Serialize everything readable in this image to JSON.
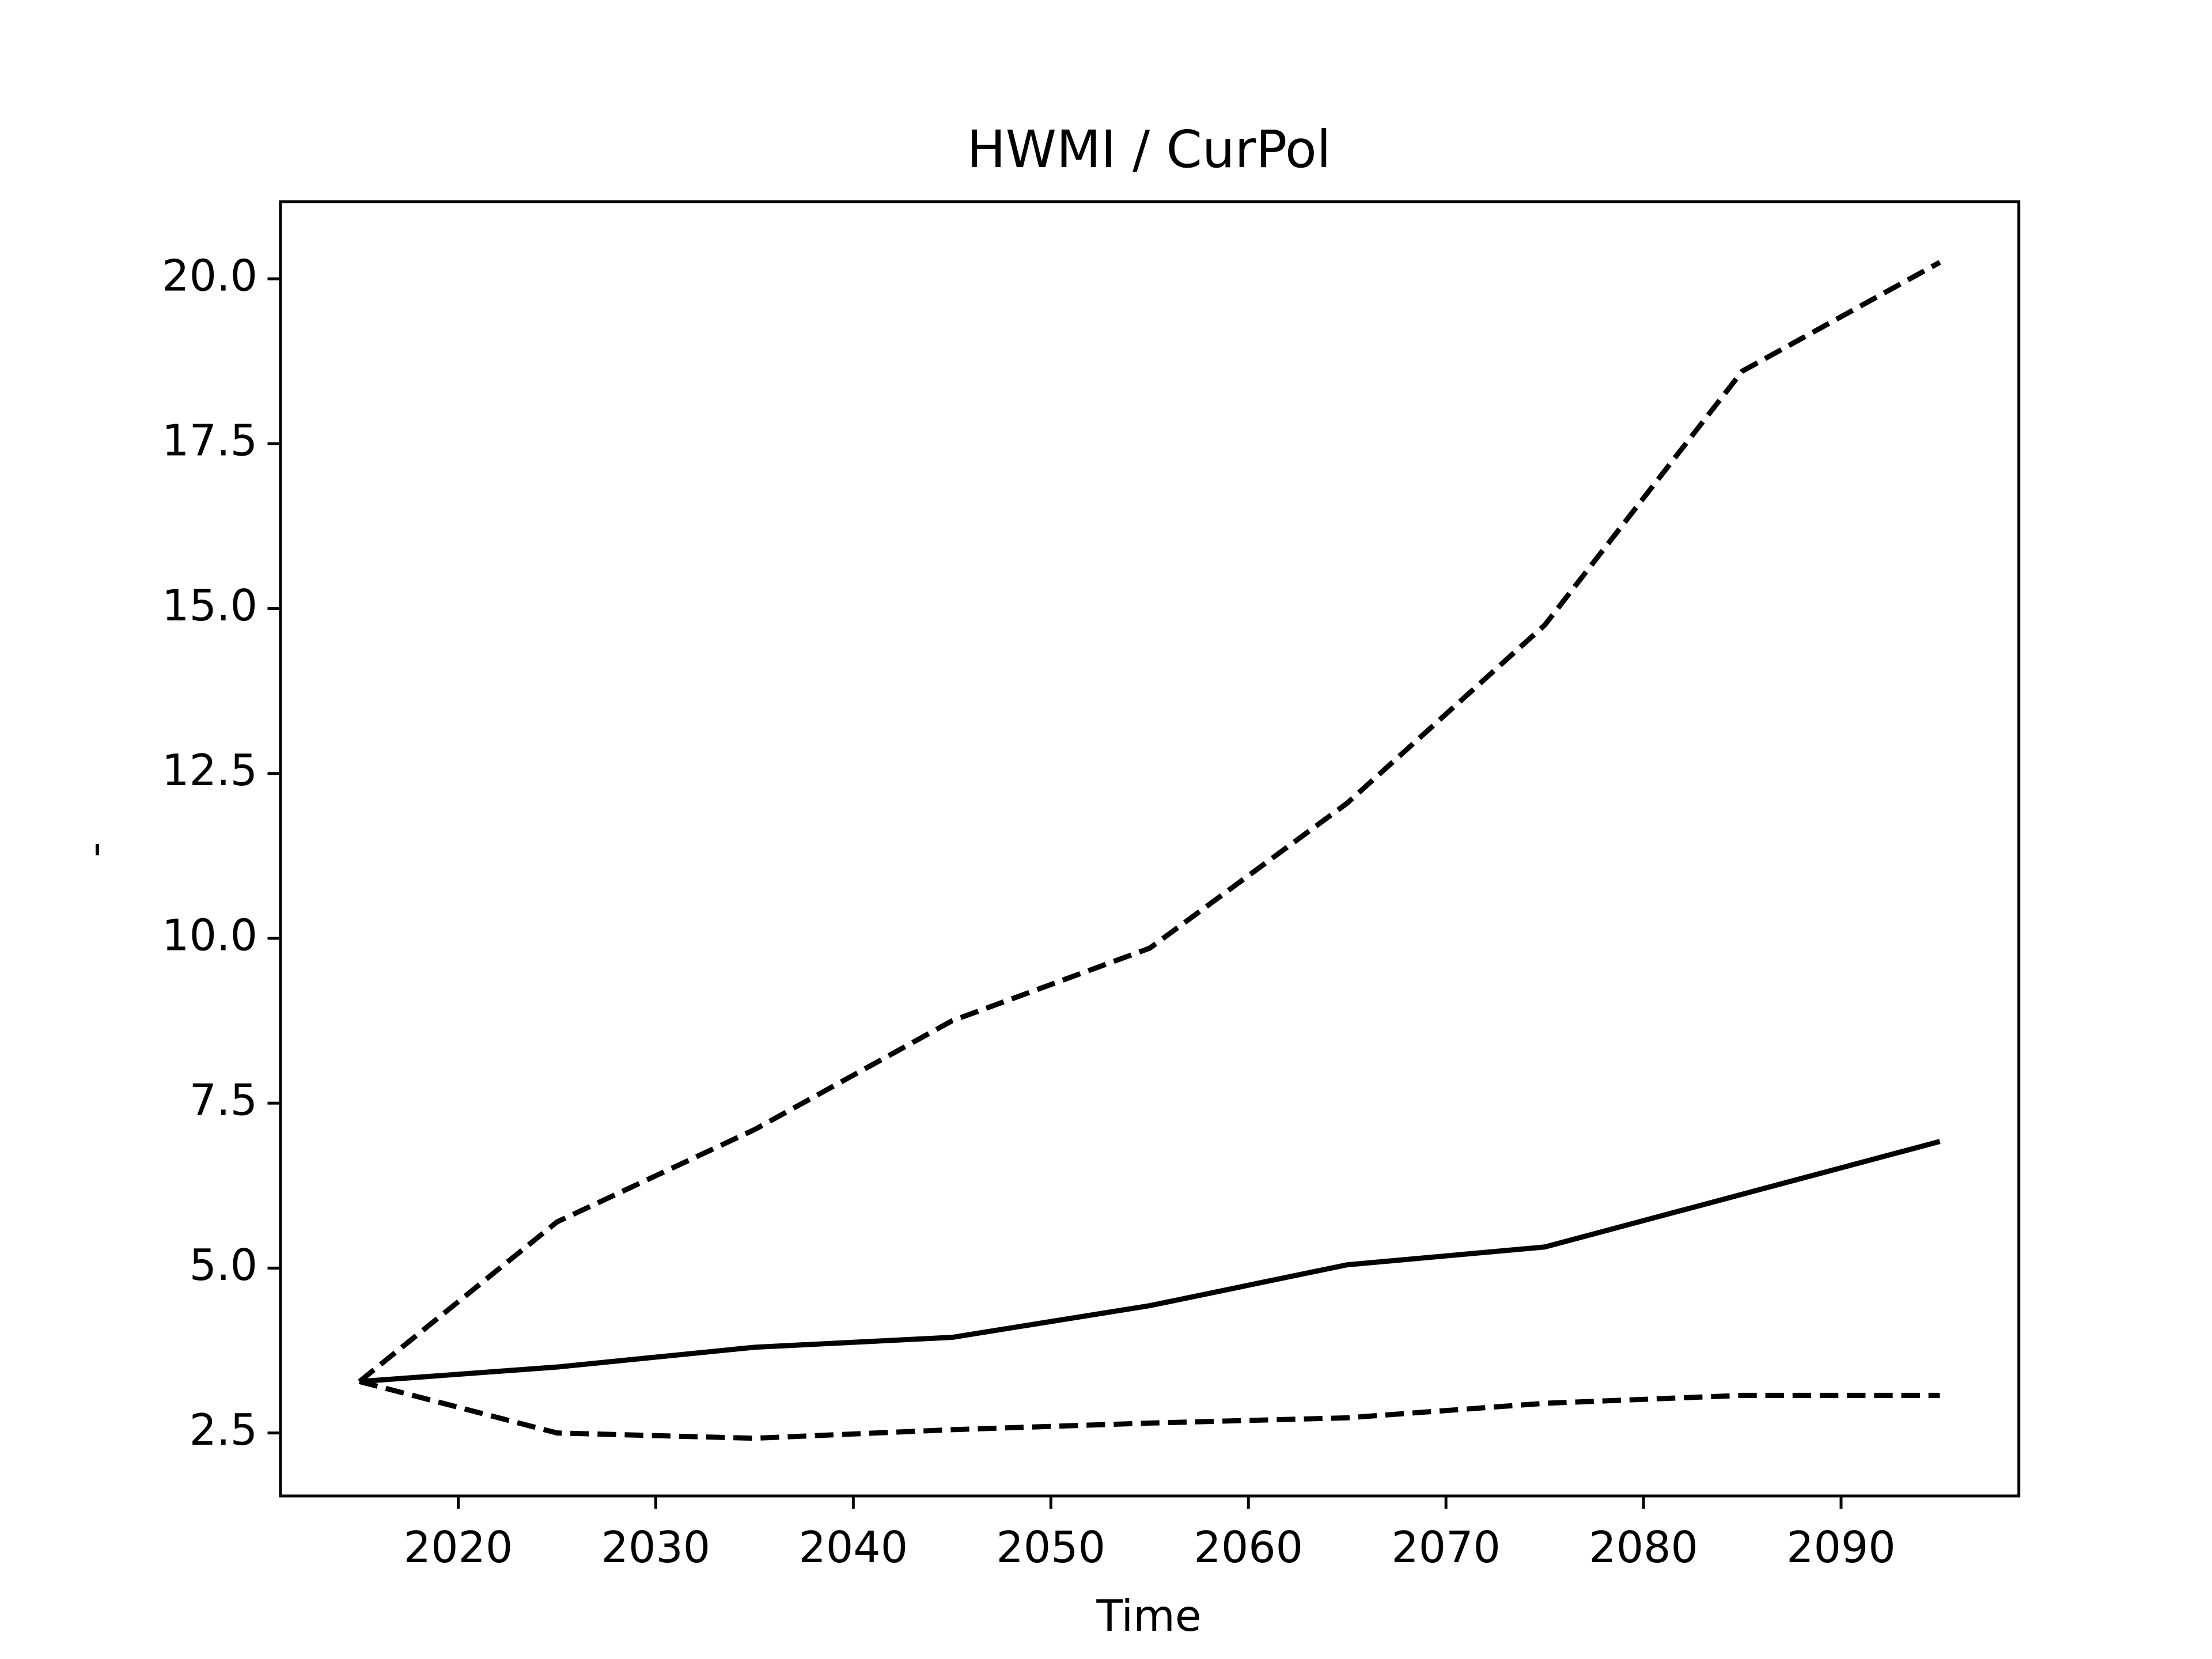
{
  "chart_data": {
    "type": "line",
    "title": "HWMI / CurPol",
    "x_label": "Time",
    "y_label": "-",
    "x": [
      2015,
      2025,
      2035,
      2045,
      2055,
      2065,
      2075,
      2085,
      2095
    ],
    "series": [
      {
        "color": "#000000",
        "dash": "solid",
        "values": [
          3.28,
          3.5,
          3.8,
          3.95,
          4.43,
          5.05,
          5.32,
          6.12,
          6.92
        ]
      },
      {
        "color": "#000000",
        "dash": "dashed",
        "values": [
          3.28,
          5.7,
          7.1,
          8.75,
          9.85,
          12.05,
          14.75,
          18.6,
          20.25
        ]
      },
      {
        "color": "#000000",
        "dash": "dashed",
        "values": [
          3.28,
          2.5,
          2.42,
          2.55,
          2.65,
          2.73,
          2.95,
          3.07,
          3.07
        ]
      }
    ],
    "xlim": [
      2011,
      2099
    ],
    "ylim": [
      1.545,
      21.17
    ],
    "xticks": [
      2020,
      2030,
      2040,
      2050,
      2060,
      2070,
      2080,
      2090
    ],
    "yticks": [
      {
        "value": 2.5,
        "label": "2.5"
      },
      {
        "value": 5,
        "label": "5.0"
      },
      {
        "value": 7.5,
        "label": "7.5"
      },
      {
        "value": 10,
        "label": "10.0"
      },
      {
        "value": 12.5,
        "label": "12.5"
      },
      {
        "value": 15,
        "label": "15.0"
      },
      {
        "value": 17.5,
        "label": "17.5"
      },
      {
        "value": 20,
        "label": "20.0"
      }
    ],
    "grid": false
  }
}
